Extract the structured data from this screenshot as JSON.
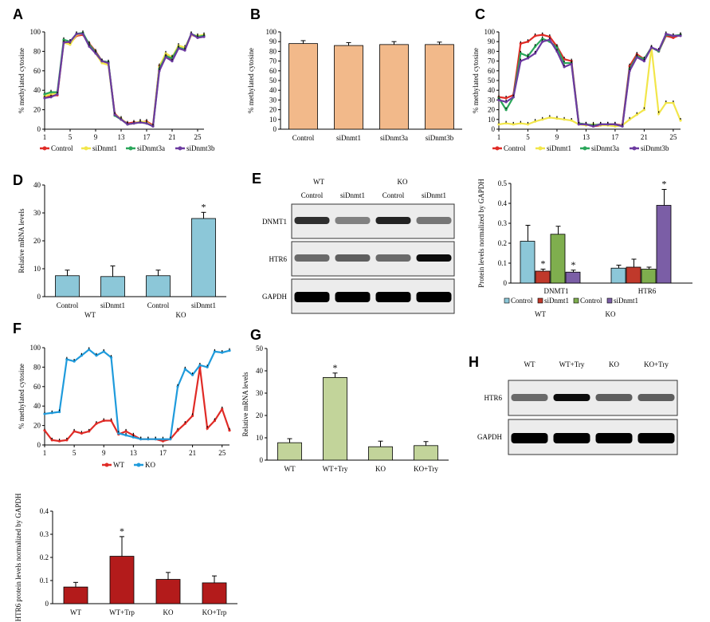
{
  "panels": {
    "A": "A",
    "B": "B",
    "C": "C",
    "D": "D",
    "E": "E",
    "F": "F",
    "G": "G",
    "H": "H"
  },
  "colors": {
    "control": "#e02b26",
    "sidDnmt1": "#f2e64a",
    "siDnmt3a": "#2aa65a",
    "siDnmt3b": "#6c3aa0",
    "wt": "#e02b26",
    "ko": "#1f9bdc",
    "peach": "#f2b98a",
    "lightblue": "#8cc7d8",
    "lightgreen": "#c2d49a",
    "darkred": "#b31b1b",
    "eRed": "#c0392b",
    "eGreen": "#7fae4e",
    "ePurple": "#7b5ea6"
  },
  "chart_data": [
    {
      "id": "A",
      "type": "line",
      "ylabel": "% methylated cytosine",
      "ylim": [
        0,
        100
      ],
      "yticks": [
        "0",
        "20",
        "40",
        "60",
        "80",
        "100"
      ],
      "xticks": [
        1,
        5,
        9,
        13,
        17,
        21,
        25
      ],
      "x": [
        1,
        2,
        3,
        4,
        5,
        6,
        7,
        8,
        9,
        10,
        11,
        12,
        13,
        14,
        15,
        16,
        17,
        18,
        19,
        20,
        21,
        22,
        23,
        24,
        25,
        26
      ],
      "series": [
        {
          "name": "Control",
          "color": "#e02b26",
          "values": [
            33,
            34,
            35,
            90,
            88,
            96,
            97,
            88,
            80,
            70,
            68,
            16,
            10,
            6,
            7,
            7,
            8,
            4,
            65,
            76,
            72,
            84,
            82,
            97,
            95,
            96
          ]
        },
        {
          "name": "siDnmt1",
          "color": "#f2e64a",
          "values": [
            34,
            36,
            37,
            89,
            87,
            97,
            98,
            86,
            78,
            68,
            66,
            15,
            11,
            5,
            6,
            8,
            7,
            3,
            64,
            78,
            74,
            86,
            84,
            97,
            96,
            97
          ]
        },
        {
          "name": "siDnmt3a",
          "color": "#2aa65a",
          "values": [
            36,
            38,
            38,
            92,
            90,
            98,
            99,
            87,
            79,
            70,
            69,
            14,
            10,
            5,
            6,
            7,
            6,
            3,
            62,
            75,
            73,
            84,
            82,
            98,
            95,
            96
          ]
        },
        {
          "name": "siDnmt3b",
          "color": "#6c3aa0",
          "values": [
            32,
            33,
            36,
            89,
            90,
            98,
            98,
            85,
            78,
            70,
            68,
            15,
            10,
            5,
            6,
            7,
            6,
            3,
            60,
            74,
            70,
            83,
            81,
            98,
            94,
            95
          ]
        }
      ]
    },
    {
      "id": "B",
      "type": "bar",
      "ylabel": "% methylated cytosine",
      "ylim": [
        0,
        100
      ],
      "yticks": [
        "0",
        "10",
        "20",
        "30",
        "40",
        "50",
        "60",
        "70",
        "80",
        "90",
        "100"
      ],
      "categories": [
        "Control",
        "siDnmt1",
        "siDnmt3a",
        "siDnmt3b"
      ],
      "values": [
        88,
        86,
        87,
        87
      ],
      "errors": [
        3,
        3,
        3,
        2.5
      ],
      "color": "#f2b98a"
    },
    {
      "id": "C",
      "type": "line",
      "ylabel": "% methylated cytosine",
      "ylim": [
        0,
        100
      ],
      "yticks": [
        "0",
        "10",
        "20",
        "30",
        "40",
        "50",
        "60",
        "70",
        "80",
        "90",
        "100"
      ],
      "xticks": [
        1,
        5,
        9,
        13,
        17,
        21,
        25
      ],
      "x": [
        1,
        2,
        3,
        4,
        5,
        6,
        7,
        8,
        9,
        10,
        11,
        12,
        13,
        14,
        15,
        16,
        17,
        18,
        19,
        20,
        21,
        22,
        23,
        24,
        25,
        26
      ],
      "series": [
        {
          "name": "Control",
          "color": "#e02b26",
          "values": [
            33,
            32,
            35,
            88,
            90,
            96,
            97,
            95,
            85,
            72,
            70,
            6,
            5,
            3,
            4,
            5,
            5,
            4,
            65,
            77,
            72,
            84,
            80,
            96,
            94,
            97
          ]
        },
        {
          "name": "siDnmt1",
          "color": "#f2e64a",
          "values": [
            5,
            6,
            5,
            6,
            5,
            8,
            10,
            12,
            11,
            10,
            9,
            5,
            4,
            5,
            4,
            4,
            3,
            4,
            10,
            15,
            20,
            84,
            16,
            27,
            27,
            9
          ]
        },
        {
          "name": "siDnmt3a",
          "color": "#2aa65a",
          "values": [
            32,
            20,
            33,
            78,
            75,
            85,
            93,
            90,
            84,
            68,
            68,
            6,
            5,
            4,
            5,
            5,
            5,
            3,
            62,
            75,
            72,
            84,
            80,
            97,
            96,
            97
          ]
        },
        {
          "name": "siDnmt3b",
          "color": "#6c3aa0",
          "values": [
            30,
            28,
            33,
            70,
            73,
            78,
            90,
            92,
            80,
            64,
            67,
            5,
            5,
            3,
            5,
            5,
            5,
            3,
            60,
            74,
            70,
            84,
            81,
            98,
            96,
            96
          ]
        }
      ]
    },
    {
      "id": "D",
      "type": "bar",
      "ylabel": "Relative mRNA levels",
      "ylim": [
        0,
        40
      ],
      "yticks": [
        "0",
        "10",
        "20",
        "30",
        "40"
      ],
      "categories": [
        "Control",
        "siDnmt1",
        "Control",
        "siDnmt1"
      ],
      "groups": [
        "WT",
        "KO"
      ],
      "values": [
        7.5,
        7.2,
        7.5,
        28
      ],
      "errors": [
        2,
        3.8,
        2,
        2.2
      ],
      "stars": [
        false,
        false,
        false,
        true
      ],
      "color": "#8cc7d8"
    },
    {
      "id": "E",
      "type": "bar",
      "ylabel": "Protein levels normalized by GAPDH",
      "ylim": [
        0,
        0.5
      ],
      "yticks": [
        "0",
        "0.1",
        "0.2",
        "0.3",
        "0.4",
        "0.5"
      ],
      "categories": [
        "DNMT1",
        "HTR6"
      ],
      "groups": [
        "WT",
        "KO"
      ],
      "series": [
        {
          "name": "Control",
          "color": "#8cc7d8",
          "values": [
            0.21,
            0.075
          ],
          "errors": [
            0.08,
            0.015
          ],
          "stars": [
            false,
            false
          ]
        },
        {
          "name": "siDnmt1",
          "color": "#c0392b",
          "values": [
            0.06,
            0.08
          ],
          "errors": [
            0.01,
            0.04
          ],
          "stars": [
            true,
            false
          ]
        },
        {
          "name": "Control",
          "color": "#7fae4e",
          "values": [
            0.245,
            0.07
          ],
          "errors": [
            0.04,
            0.01
          ],
          "stars": [
            false,
            false
          ]
        },
        {
          "name": "siDnmt1",
          "color": "#7b5ea6",
          "values": [
            0.055,
            0.39
          ],
          "errors": [
            0.01,
            0.08
          ],
          "stars": [
            true,
            true
          ]
        }
      ]
    },
    {
      "id": "F",
      "type": "line",
      "ylabel": "% methylated cytosine",
      "ylim": [
        0,
        100
      ],
      "yticks": [
        "0",
        "20",
        "40",
        "60",
        "80",
        "100"
      ],
      "xticks": [
        1,
        5,
        9,
        13,
        17,
        21,
        25
      ],
      "x": [
        1,
        2,
        3,
        4,
        5,
        6,
        7,
        8,
        9,
        10,
        11,
        12,
        13,
        14,
        15,
        16,
        17,
        18,
        19,
        20,
        21,
        22,
        23,
        24,
        25,
        26
      ],
      "series": [
        {
          "name": "WT",
          "color": "#e02b26",
          "values": [
            15,
            5,
            4,
            5,
            14,
            12,
            14,
            22,
            25,
            25,
            11,
            14,
            10,
            6,
            6,
            6,
            4,
            6,
            15,
            22,
            30,
            80,
            17,
            25,
            37,
            15
          ]
        },
        {
          "name": "KO",
          "color": "#1f9bdc",
          "values": [
            32,
            33,
            34,
            88,
            86,
            92,
            98,
            92,
            96,
            90,
            12,
            10,
            8,
            6,
            6,
            6,
            6,
            6,
            60,
            78,
            72,
            82,
            80,
            96,
            95,
            97
          ]
        }
      ]
    },
    {
      "id": "G",
      "type": "bar",
      "ylabel": "Relative mRNA levels",
      "ylim": [
        0,
        50
      ],
      "yticks": [
        "0",
        "10",
        "20",
        "30",
        "40",
        "50"
      ],
      "categories": [
        "WT",
        "WT+Try",
        "KO",
        "KO+Try"
      ],
      "values": [
        7.8,
        37,
        6,
        6.5
      ],
      "errors": [
        1.8,
        2,
        2.5,
        1.8
      ],
      "stars": [
        false,
        true,
        false,
        false
      ],
      "color": "#c2d49a"
    },
    {
      "id": "H",
      "type": "bar",
      "ylabel": "HTR6 protein levels normalized by GAPDH",
      "ylim": [
        0,
        0.4
      ],
      "yticks": [
        "0",
        "0.1",
        "0.2",
        "0.3",
        "0.4"
      ],
      "categories": [
        "WT",
        "WT+Trp",
        "KO",
        "KO+Trp"
      ],
      "values": [
        0.072,
        0.205,
        0.105,
        0.09
      ],
      "errors": [
        0.02,
        0.085,
        0.03,
        0.03
      ],
      "stars": [
        false,
        true,
        false,
        false
      ],
      "color": "#b31b1b"
    }
  ],
  "blotE": {
    "header_wt": "WT",
    "header_ko": "KO",
    "lanes": [
      "Control",
      "siDnmt1",
      "Control",
      "siDnmt1"
    ],
    "rows": [
      "DNMT1",
      "HTR6",
      "GAPDH"
    ],
    "intensity": [
      [
        0.8,
        0.45,
        0.85,
        0.5
      ],
      [
        0.55,
        0.6,
        0.55,
        0.95
      ],
      [
        1,
        1,
        1,
        1
      ]
    ]
  },
  "blotH": {
    "lanes": [
      "WT",
      "WT+Try",
      "KO",
      "KO+Try"
    ],
    "rows": [
      "HTR6",
      "GAPDH"
    ],
    "intensity": [
      [
        0.55,
        0.95,
        0.6,
        0.6
      ],
      [
        1,
        1,
        1,
        1
      ]
    ]
  }
}
